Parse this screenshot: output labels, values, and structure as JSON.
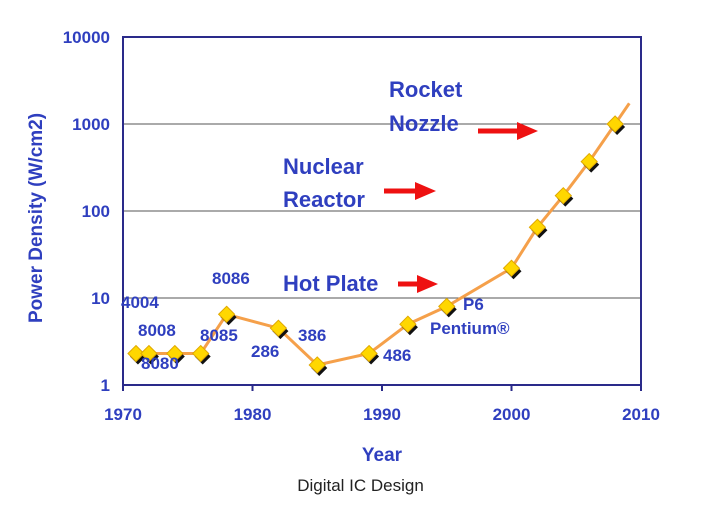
{
  "caption": "Digital IC Design",
  "colors": {
    "axis_text": "#2f3fbf",
    "line": "#f5a04a",
    "marker": "#ffd700",
    "arrow": "#ee1111"
  },
  "chart_data": {
    "type": "line",
    "xlabel": "Year",
    "ylabel": "Power Density (W/cm2)",
    "xlim": [
      1970,
      2010
    ],
    "ylim": [
      1,
      10000
    ],
    "yscale": "log",
    "grid": "horizontal",
    "x_ticks": [
      "1970",
      "1980",
      "1990",
      "2000",
      "2010"
    ],
    "y_ticks": [
      "1",
      "10",
      "100",
      "1000",
      "10000"
    ],
    "series": [
      {
        "x": [
          1971,
          1972,
          1974,
          1976,
          1978,
          1982,
          1985,
          1989,
          1992,
          1995,
          2000,
          2002,
          2004,
          2006,
          2008
        ],
        "y": [
          2.3,
          2.3,
          2.3,
          2.3,
          6.5,
          4.5,
          1.7,
          2.3,
          5,
          8,
          22,
          65,
          150,
          370,
          1000
        ]
      }
    ],
    "point_labels": [
      "4004",
      "8008",
      "8080",
      "8085",
      "8086",
      "286",
      "386",
      "486",
      "P6",
      "Pentium®"
    ],
    "annotations": [
      "Rocket",
      "Nozzle",
      "Nuclear",
      "Reactor",
      "Hot Plate"
    ]
  }
}
